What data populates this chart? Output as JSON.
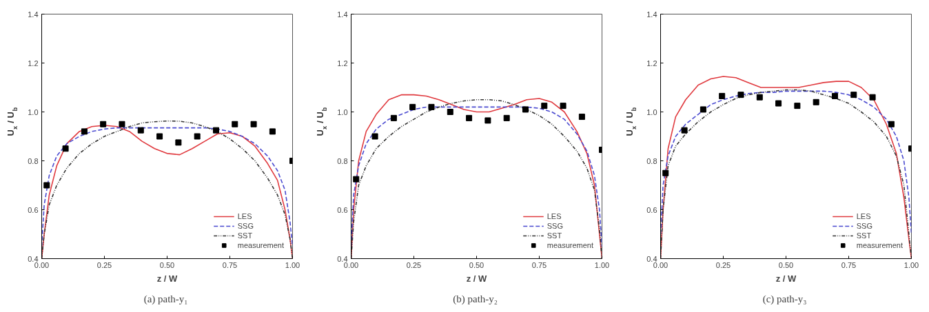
{
  "chart_data": [
    {
      "type": "line",
      "title": "(a)  path-y₁",
      "xlabel": "z / W",
      "ylabel": "U$_{x}$ / U$_{b}$",
      "xlim": [
        0,
        1
      ],
      "ylim": [
        0.4,
        1.4
      ],
      "xticks": [
        {
          "value": 0,
          "label": "0.00"
        },
        {
          "value": 0.25,
          "label": "0.25"
        },
        {
          "value": 0.5,
          "label": "0.50"
        },
        {
          "value": 0.75,
          "label": "0.75"
        },
        {
          "value": 1,
          "label": "1.00"
        }
      ],
      "yticks": [
        {
          "value": 0.4,
          "label": "0.4"
        },
        {
          "value": 0.6,
          "label": "0.6"
        },
        {
          "value": 0.8,
          "label": "0.8"
        },
        {
          "value": 1.0,
          "label": "1.0"
        },
        {
          "value": 1.2,
          "label": "1.2"
        },
        {
          "value": 1.4,
          "label": "1.4"
        }
      ],
      "grid": false,
      "legend": "bottom right",
      "x": [
        0,
        0.01,
        0.03,
        0.06,
        0.1,
        0.15,
        0.2,
        0.25,
        0.3,
        0.35,
        0.4,
        0.45,
        0.5,
        0.55,
        0.6,
        0.65,
        0.7,
        0.75,
        0.8,
        0.85,
        0.9,
        0.94,
        0.97,
        0.99,
        1.0
      ],
      "series": [
        {
          "name": "LES",
          "color": "#e0393e",
          "line_style": "solid",
          "values": [
            0.4,
            0.5,
            0.66,
            0.78,
            0.87,
            0.92,
            0.94,
            0.945,
            0.94,
            0.92,
            0.88,
            0.85,
            0.83,
            0.825,
            0.85,
            0.88,
            0.91,
            0.915,
            0.9,
            0.86,
            0.79,
            0.72,
            0.6,
            0.48,
            0.4
          ]
        },
        {
          "name": "SSG",
          "color": "#4a4ad0",
          "line_style": "dashed",
          "values": [
            0.45,
            0.62,
            0.74,
            0.82,
            0.87,
            0.9,
            0.92,
            0.93,
            0.935,
            0.935,
            0.935,
            0.935,
            0.935,
            0.935,
            0.935,
            0.935,
            0.93,
            0.92,
            0.9,
            0.87,
            0.82,
            0.76,
            0.68,
            0.55,
            0.45
          ]
        },
        {
          "name": "SST",
          "color": "#333333",
          "line_style": "dotted",
          "values": [
            0.4,
            0.5,
            0.62,
            0.7,
            0.77,
            0.83,
            0.87,
            0.9,
            0.92,
            0.94,
            0.955,
            0.96,
            0.963,
            0.962,
            0.955,
            0.94,
            0.92,
            0.89,
            0.85,
            0.8,
            0.73,
            0.66,
            0.58,
            0.48,
            0.4
          ]
        },
        {
          "name": "measurement",
          "type": "scatter",
          "marker": "square",
          "color": "#000000",
          "x": [
            0.02,
            0.095,
            0.17,
            0.245,
            0.32,
            0.395,
            0.47,
            0.545,
            0.62,
            0.695,
            0.77,
            0.845,
            0.92,
            1.0
          ],
          "values": [
            0.7,
            0.85,
            0.92,
            0.95,
            0.95,
            0.925,
            0.9,
            0.875,
            0.9,
            0.925,
            0.95,
            0.95,
            0.92,
            0.8
          ]
        }
      ]
    },
    {
      "type": "line",
      "title": "(b)  path-y₂",
      "xlabel": "z / W",
      "ylabel": "U$_{x}$ / U$_{b}$",
      "xlim": [
        0,
        1
      ],
      "ylim": [
        0.4,
        1.4
      ],
      "xticks": [
        {
          "value": 0,
          "label": "0.00"
        },
        {
          "value": 0.25,
          "label": "0.25"
        },
        {
          "value": 0.5,
          "label": "0.50"
        },
        {
          "value": 0.75,
          "label": "0.75"
        },
        {
          "value": 1,
          "label": "1.00"
        }
      ],
      "yticks": [
        {
          "value": 0.4,
          "label": "0.4"
        },
        {
          "value": 0.6,
          "label": "0.6"
        },
        {
          "value": 0.8,
          "label": "0.8"
        },
        {
          "value": 1.0,
          "label": "1.0"
        },
        {
          "value": 1.2,
          "label": "1.2"
        },
        {
          "value": 1.4,
          "label": "1.4"
        }
      ],
      "grid": false,
      "legend": "bottom right",
      "x": [
        0,
        0.01,
        0.03,
        0.06,
        0.1,
        0.15,
        0.2,
        0.25,
        0.3,
        0.35,
        0.4,
        0.45,
        0.5,
        0.55,
        0.6,
        0.65,
        0.7,
        0.75,
        0.8,
        0.85,
        0.9,
        0.94,
        0.97,
        0.99,
        1.0
      ],
      "series": [
        {
          "name": "LES",
          "color": "#e0393e",
          "line_style": "solid",
          "values": [
            0.4,
            0.6,
            0.8,
            0.92,
            0.99,
            1.05,
            1.07,
            1.07,
            1.065,
            1.05,
            1.03,
            1.01,
            1.0,
            1.0,
            1.015,
            1.03,
            1.05,
            1.055,
            1.04,
            1.0,
            0.92,
            0.83,
            0.7,
            0.5,
            0.4
          ]
        },
        {
          "name": "SSG",
          "color": "#4a4ad0",
          "line_style": "dashed",
          "values": [
            0.45,
            0.66,
            0.78,
            0.87,
            0.93,
            0.97,
            0.99,
            1.01,
            1.02,
            1.02,
            1.02,
            1.02,
            1.02,
            1.02,
            1.02,
            1.02,
            1.02,
            1.015,
            1.0,
            0.97,
            0.91,
            0.84,
            0.74,
            0.6,
            0.45
          ]
        },
        {
          "name": "SST",
          "color": "#333333",
          "line_style": "dotted",
          "values": [
            0.4,
            0.55,
            0.7,
            0.78,
            0.85,
            0.9,
            0.94,
            0.97,
            1.0,
            1.02,
            1.035,
            1.045,
            1.05,
            1.05,
            1.045,
            1.03,
            1.01,
            0.985,
            0.95,
            0.9,
            0.84,
            0.77,
            0.68,
            0.52,
            0.4
          ]
        },
        {
          "name": "measurement",
          "type": "scatter",
          "marker": "square",
          "color": "#000000",
          "x": [
            0.02,
            0.095,
            0.17,
            0.245,
            0.32,
            0.395,
            0.47,
            0.545,
            0.62,
            0.695,
            0.77,
            0.845,
            0.92,
            1.0
          ],
          "values": [
            0.725,
            0.9,
            0.975,
            1.02,
            1.02,
            1.0,
            0.975,
            0.965,
            0.975,
            1.01,
            1.025,
            1.025,
            0.98,
            0.845
          ]
        }
      ]
    },
    {
      "type": "line",
      "title": "(c)  path-y₃",
      "xlabel": "z / W",
      "ylabel": "U$_{x}$ / U$_{b}$",
      "xlim": [
        0,
        1
      ],
      "ylim": [
        0.4,
        1.4
      ],
      "xticks": [
        {
          "value": 0,
          "label": "0.00"
        },
        {
          "value": 0.25,
          "label": "0.25"
        },
        {
          "value": 0.5,
          "label": "0.50"
        },
        {
          "value": 0.75,
          "label": "0.75"
        },
        {
          "value": 1,
          "label": "1.00"
        }
      ],
      "yticks": [
        {
          "value": 0.4,
          "label": "0.4"
        },
        {
          "value": 0.6,
          "label": "0.6"
        },
        {
          "value": 0.8,
          "label": "0.8"
        },
        {
          "value": 1.0,
          "label": "1.0"
        },
        {
          "value": 1.2,
          "label": "1.2"
        },
        {
          "value": 1.4,
          "label": "1.4"
        }
      ],
      "grid": false,
      "legend": "bottom right",
      "x": [
        0,
        0.01,
        0.03,
        0.06,
        0.1,
        0.15,
        0.2,
        0.25,
        0.3,
        0.35,
        0.4,
        0.45,
        0.5,
        0.55,
        0.6,
        0.65,
        0.7,
        0.75,
        0.8,
        0.85,
        0.9,
        0.94,
        0.97,
        0.99,
        1.0
      ],
      "series": [
        {
          "name": "LES",
          "color": "#e0393e",
          "line_style": "solid",
          "values": [
            0.4,
            0.6,
            0.85,
            0.98,
            1.05,
            1.11,
            1.135,
            1.145,
            1.14,
            1.12,
            1.1,
            1.1,
            1.1,
            1.1,
            1.11,
            1.12,
            1.125,
            1.125,
            1.1,
            1.05,
            0.95,
            0.83,
            0.65,
            0.48,
            0.4
          ]
        },
        {
          "name": "SSG",
          "color": "#4a4ad0",
          "line_style": "dashed",
          "values": [
            0.5,
            0.7,
            0.82,
            0.9,
            0.95,
            0.99,
            1.03,
            1.05,
            1.065,
            1.075,
            1.08,
            1.08,
            1.085,
            1.085,
            1.085,
            1.085,
            1.08,
            1.07,
            1.05,
            1.02,
            0.97,
            0.9,
            0.8,
            0.65,
            0.5
          ]
        },
        {
          "name": "SST",
          "color": "#333333",
          "line_style": "dotted",
          "values": [
            0.4,
            0.6,
            0.78,
            0.86,
            0.91,
            0.96,
            1.0,
            1.03,
            1.055,
            1.07,
            1.08,
            1.085,
            1.09,
            1.09,
            1.085,
            1.07,
            1.055,
            1.035,
            1.0,
            0.96,
            0.9,
            0.82,
            0.7,
            0.5,
            0.4
          ]
        },
        {
          "name": "measurement",
          "type": "scatter",
          "marker": "square",
          "color": "#000000",
          "x": [
            0.02,
            0.095,
            0.17,
            0.245,
            0.32,
            0.395,
            0.47,
            0.545,
            0.62,
            0.695,
            0.77,
            0.845,
            0.92,
            1.0
          ],
          "values": [
            0.75,
            0.925,
            1.01,
            1.065,
            1.07,
            1.06,
            1.035,
            1.025,
            1.04,
            1.065,
            1.07,
            1.06,
            0.95,
            0.85
          ]
        }
      ]
    }
  ]
}
